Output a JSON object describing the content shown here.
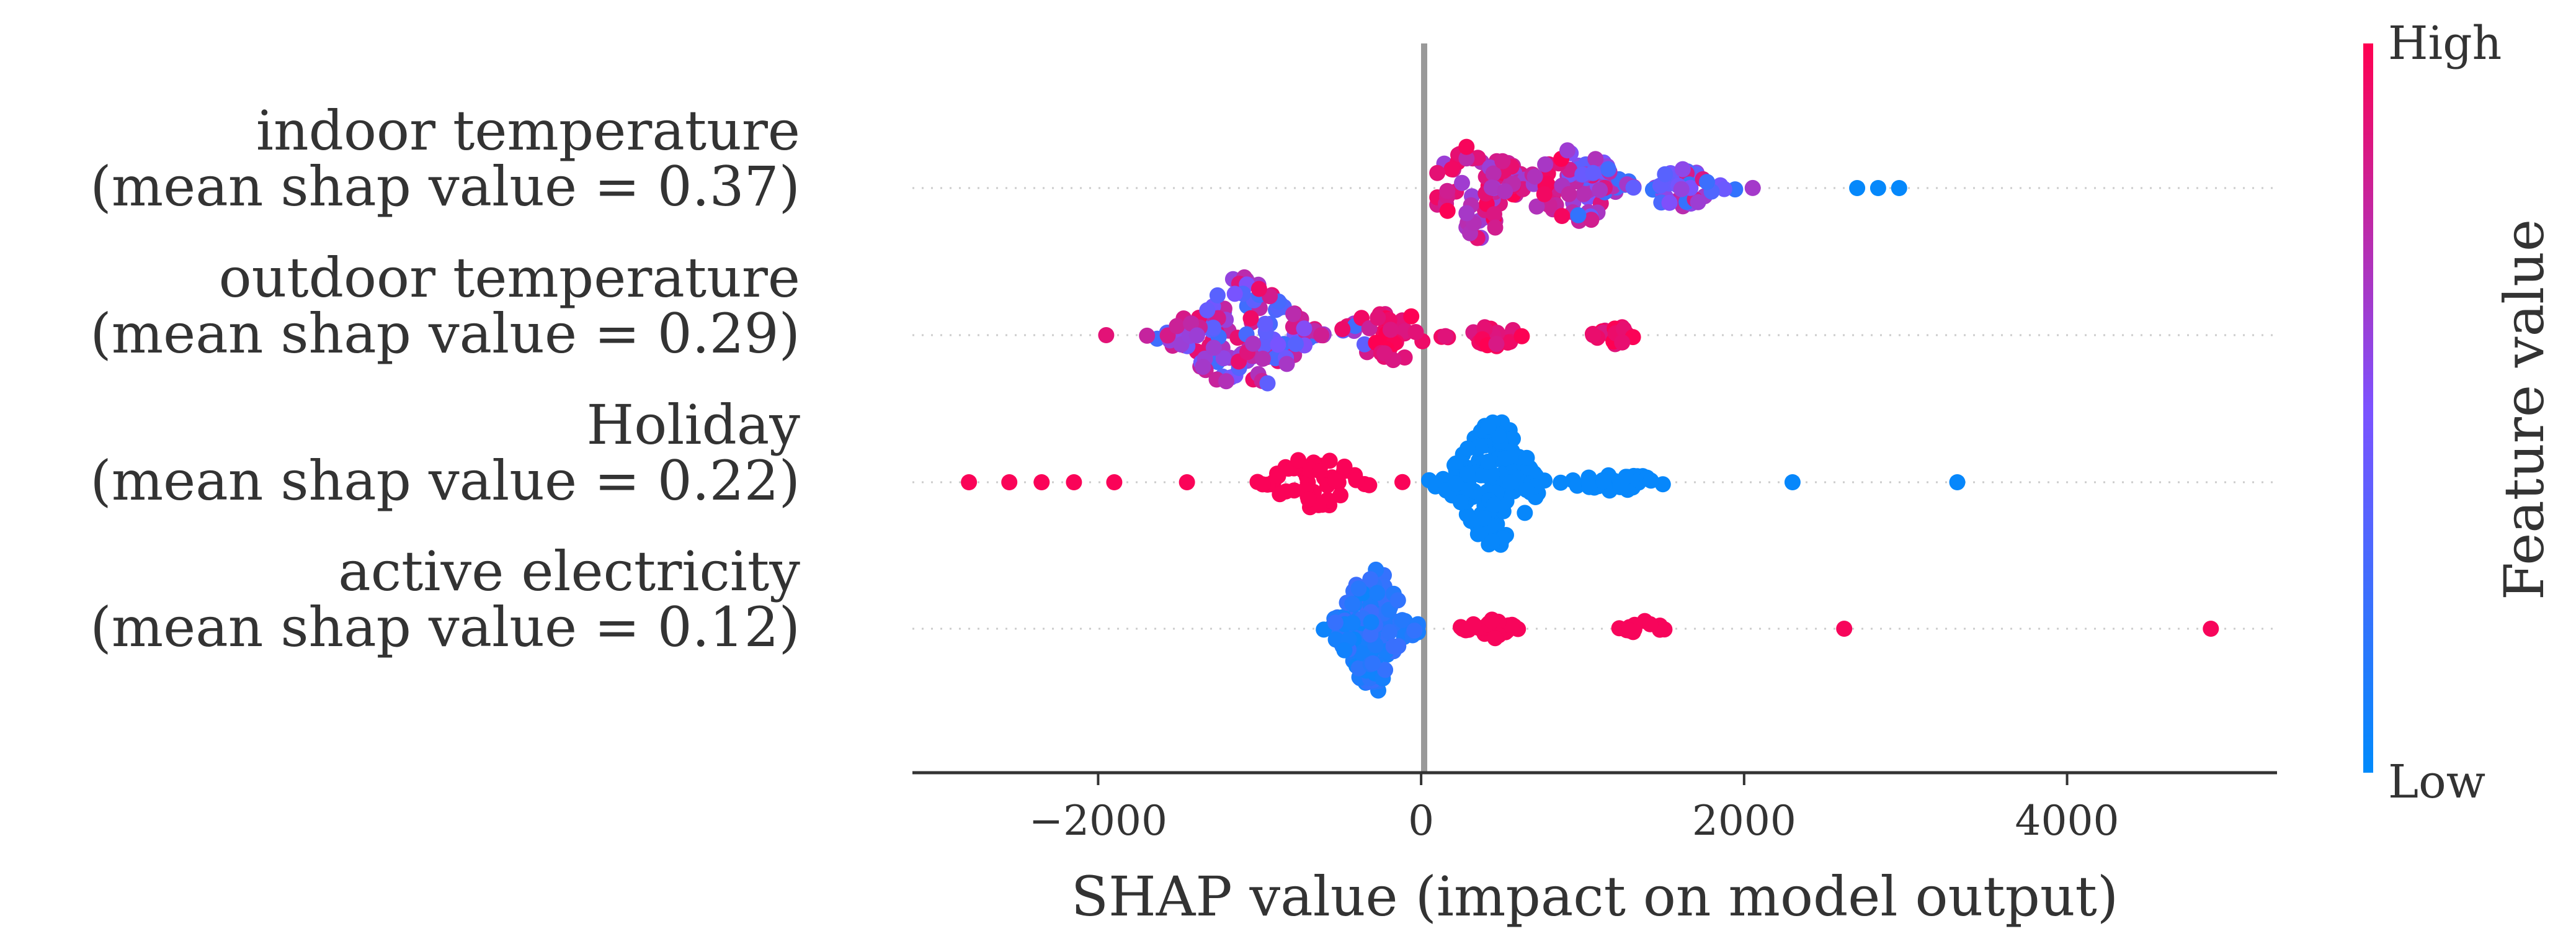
{
  "chart_data": {
    "type": "scatter",
    "subtype": "shap-beeswarm",
    "xlabel": "SHAP value (impact on model output)",
    "xlim": [
      -3150,
      5300
    ],
    "xticks": [
      -2000,
      0,
      2000,
      4000
    ],
    "xtick_labels": [
      "−2000",
      "0",
      "2000",
      "4000"
    ],
    "features": [
      {
        "name": "indoor temperature",
        "subtitle": "(mean shap value = 0.37)",
        "clusters": [
          {
            "center": 350,
            "spread": 320,
            "lo": 100,
            "hi": 1000,
            "count": 70,
            "width": 0.8
          },
          {
            "center": 950,
            "spread": 350,
            "lo": 300,
            "hi": 1700,
            "count": 80,
            "width": 0.6
          },
          {
            "center": 1600,
            "spread": 280,
            "lo": 1100,
            "hi": 2200,
            "count": 40,
            "width": 0.3
          }
        ],
        "extra_points": [
          2700,
          2830,
          2960
        ],
        "color_low": 1.0,
        "color_high": 0.0
      },
      {
        "name": "outdoor temperature",
        "subtitle": "(mean shap value = 0.29)",
        "clusters": [
          {
            "center": -1100,
            "spread": 430,
            "lo": -1900,
            "hi": -250,
            "count": 130,
            "width": 0.9
          },
          {
            "center": -200,
            "spread": 350,
            "lo": -700,
            "hi": 350,
            "count": 40,
            "width": 0.4
          },
          {
            "center": 450,
            "spread": 180,
            "lo": 100,
            "hi": 800,
            "count": 20,
            "width": 0.2
          },
          {
            "center": 1200,
            "spread": 130,
            "lo": 930,
            "hi": 1470,
            "count": 20,
            "width": 0.15
          }
        ],
        "extra_points": [
          -1950
        ],
        "color_low": 0.8,
        "color_high": 0.0
      },
      {
        "name": "Holiday",
        "subtitle": "(mean shap value = 0.22)",
        "clusters": [
          {
            "center": -650,
            "spread": 300,
            "lo": -1350,
            "hi": -100,
            "count": 50,
            "width": 0.45
          },
          {
            "center": 450,
            "spread": 280,
            "lo": 50,
            "hi": 950,
            "count": 140,
            "width": 1.0
          },
          {
            "center": 1200,
            "spread": 350,
            "lo": 800,
            "hi": 1800,
            "count": 30,
            "width": 0.18
          }
        ],
        "extra_points": [
          -2800,
          -2550,
          -2350,
          -2150,
          -1900,
          -1450,
          2300,
          3320
        ],
        "color_low": 0.0,
        "color_high": 1.0
      },
      {
        "name": "active electricity",
        "subtitle": "(mean shap value = 0.12)",
        "clusters": [
          {
            "center": -300,
            "spread": 220,
            "lo": -800,
            "hi": -20,
            "count": 140,
            "width": 1.0
          },
          {
            "center": 450,
            "spread": 200,
            "lo": 80,
            "hi": 850,
            "count": 30,
            "width": 0.15
          },
          {
            "center": 1400,
            "spread": 150,
            "lo": 1100,
            "hi": 1650,
            "count": 12,
            "width": 0.12
          }
        ],
        "extra_points": [
          2620,
          4890
        ],
        "color_low": 1.0,
        "color_high": 0.0
      }
    ],
    "colorbar": {
      "label": "Feature value",
      "high_label": "High",
      "low_label": "Low",
      "color_low": "#008afb",
      "color_mid": "#7c52ff",
      "color_high": "#ff0051"
    }
  }
}
